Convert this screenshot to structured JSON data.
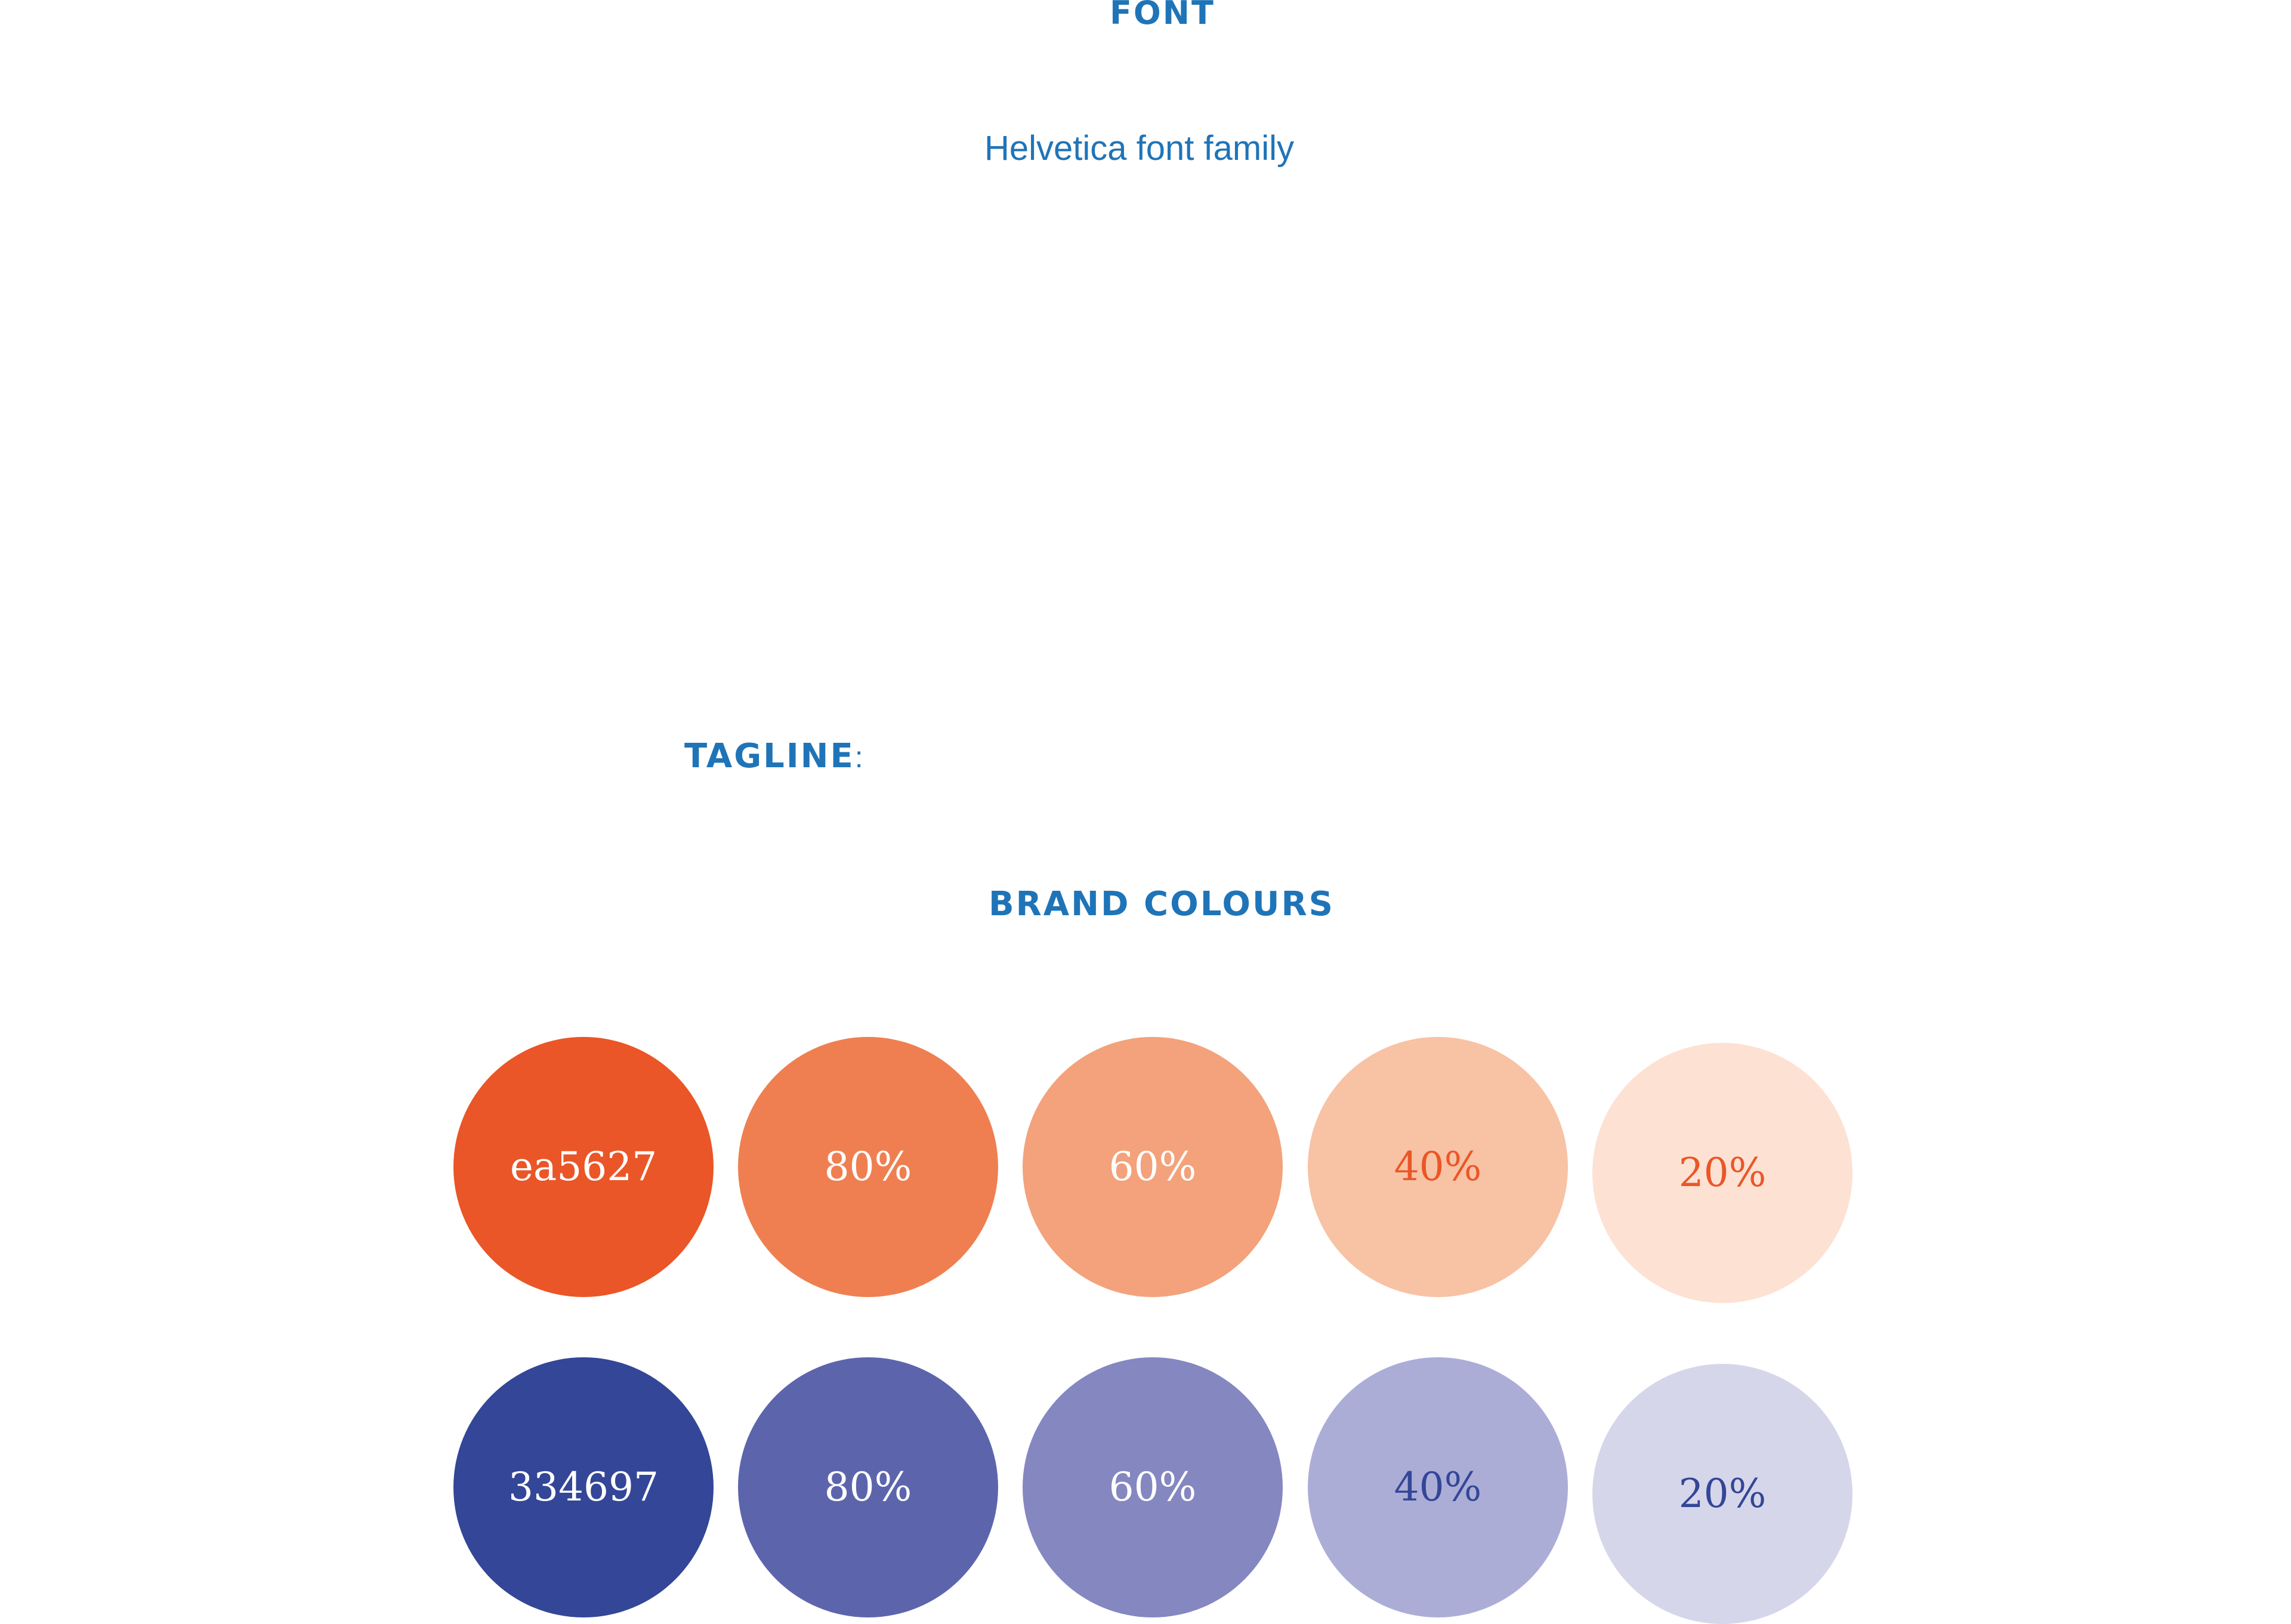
{
  "font_section": {
    "heading": "FONT",
    "description": "Helvetica font family"
  },
  "tagline_section": {
    "heading": "TAGLINE",
    "colon": ":"
  },
  "brand_colours": {
    "heading": "BRAND COLOURS",
    "accent_heading_color": "#1f74b8",
    "orange_row": [
      {
        "label": "ea5627",
        "fill": "#ea5627",
        "text_color": "#ffffff"
      },
      {
        "label": "80%",
        "fill": "#ef7f51",
        "text_color": "#ffffff"
      },
      {
        "label": "60%",
        "fill": "#f3a27b",
        "text_color": "#ffffff"
      },
      {
        "label": "40%",
        "fill": "#f8c2a4",
        "text_color": "#ea5627"
      },
      {
        "label": "20%",
        "fill": "#fde1d3",
        "text_color": "#ea5627"
      }
    ],
    "blue_row": [
      {
        "label": "334697",
        "fill": "#334697",
        "text_color": "#ffffff"
      },
      {
        "label": "80%",
        "fill": "#5c65ac",
        "text_color": "#ffffff"
      },
      {
        "label": "60%",
        "fill": "#8587c1",
        "text_color": "#ffffff"
      },
      {
        "label": "40%",
        "fill": "#acadd7",
        "text_color": "#334697"
      },
      {
        "label": "20%",
        "fill": "#d6d6eb",
        "text_color": "#334697"
      }
    ]
  }
}
